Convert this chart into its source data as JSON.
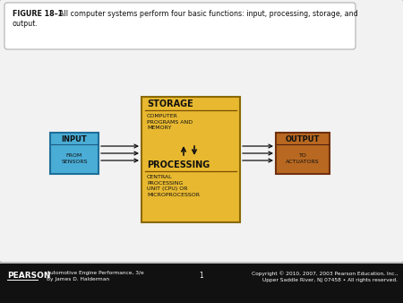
{
  "fig_width": 4.5,
  "fig_height": 3.38,
  "dpi": 100,
  "bg_color": "#d0d0d0",
  "main_bg": "#f2f2f2",
  "caption_bold": "FIGURE 18–1 ",
  "caption_text": "All computer systems perform four basic functions: input, processing, storage, and\noutput.",
  "input_box_color": "#4aadd6",
  "input_box_stroke": "#1e6e99",
  "input_label": "INPUT",
  "input_sub": "FROM\nSENSORS",
  "processing_box_color": "#e8b830",
  "processing_box_stroke": "#8a6800",
  "storage_label": "STORAGE",
  "storage_sub": "COMPUTER\nPROGRAMS AND\nMEMORY",
  "processing_label": "PROCESSING",
  "processing_sub": "CENTRAL\nPROCESSING\nUNIT (CPU) OR\nMICROPROCESSOR",
  "output_box_color": "#b86820",
  "output_box_stroke": "#703010",
  "output_label": "OUTPUT",
  "output_sub": "TO\nACTUATORS",
  "footer_bg": "#111111",
  "footer_text_color": "#ffffff",
  "footer_left": "PEARSON",
  "footer_center": "1",
  "footer_book": "Automotive Engine Performance, 3/e\nBy James D. Halderman",
  "footer_right": "Copyright © 2010, 2007, 2003 Pearson Education, Inc.,\nUpper Saddle River, NJ 07458 • All rights reserved."
}
